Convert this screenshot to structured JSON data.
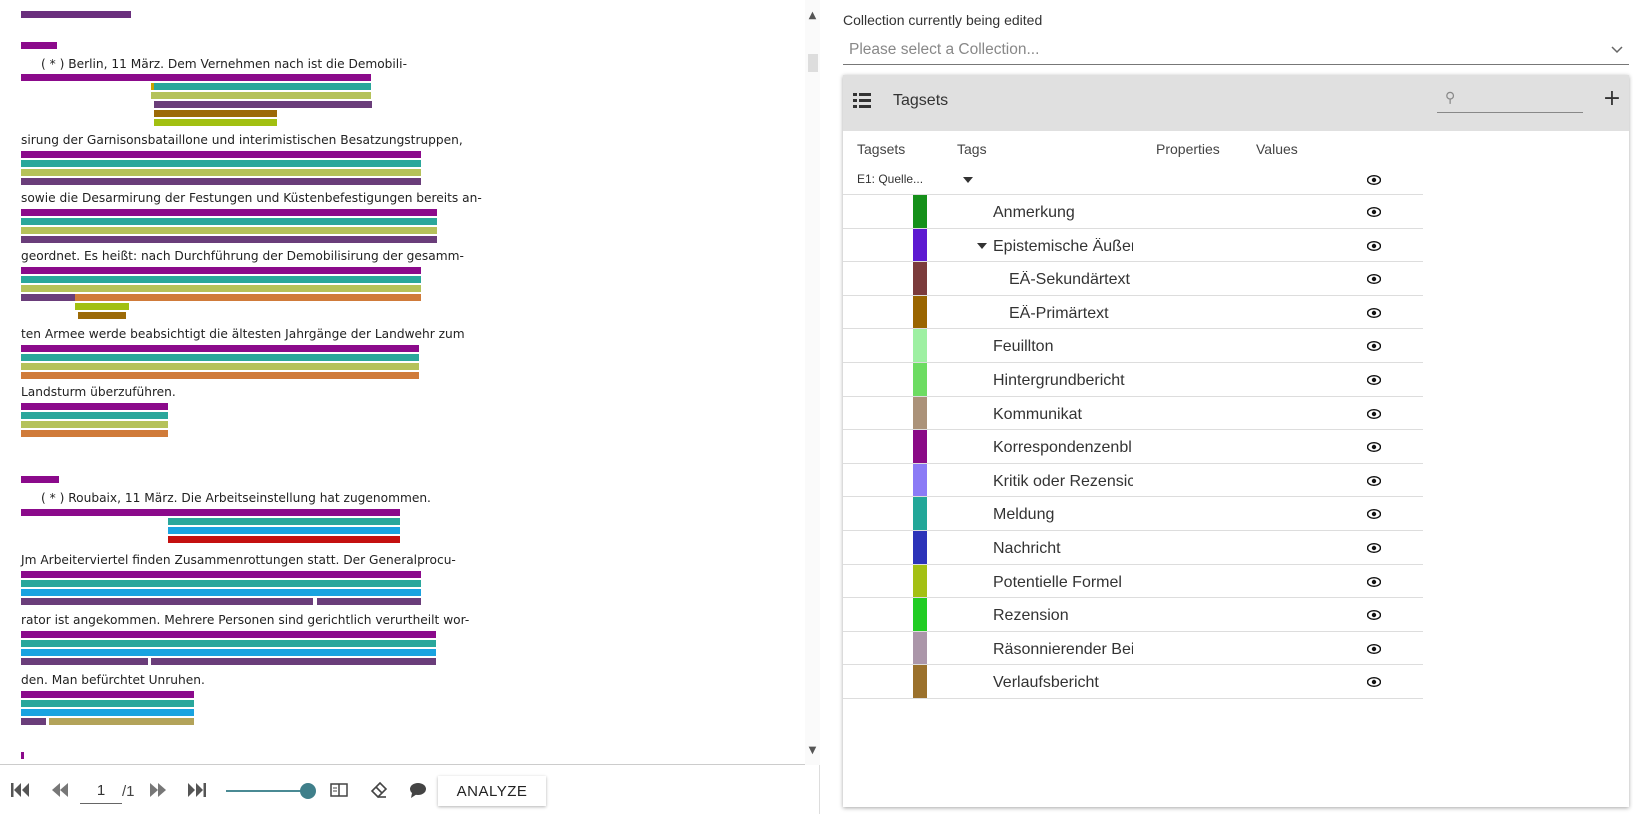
{
  "document": {
    "lines": [
      {
        "text": "",
        "top": 0,
        "indent": 0,
        "bars": [
          {
            "w": 110,
            "x": 0,
            "c": "#6a2f7d",
            "y": 11
          }
        ]
      },
      {
        "text": "",
        "top": 0,
        "indent": 0,
        "bars": [
          {
            "w": 36,
            "x": 0,
            "c": "#8b0a8b",
            "y": 42
          }
        ]
      },
      {
        "text": "( * ) Berlin, 11 März. Dem Vernehmen nach ist die Demobili-",
        "top": 56,
        "indent": 20,
        "bars": [
          {
            "x": 0,
            "w": 350,
            "c": "#8b0a8b",
            "y": 74
          },
          {
            "x": 130,
            "w": 220,
            "c": "#2aa79b",
            "y": 83
          },
          {
            "x": 130,
            "w": 220,
            "c": "#b5c25a",
            "y": 92
          },
          {
            "x": 133,
            "w": 218,
            "c": "#6a3d7a",
            "y": 101
          },
          {
            "x": 133,
            "w": 123,
            "c": "#9c6a08",
            "y": 110
          },
          {
            "x": 133,
            "w": 123,
            "c": "#a2c011",
            "y": 119
          },
          {
            "x": 130,
            "w": 3,
            "c": "#c8a400",
            "y": 83
          }
        ]
      },
      {
        "text": "sirung der Garnisonsbataillone und interimistischen Besatzungstruppen,",
        "top": 132,
        "indent": 0,
        "bars": [
          {
            "x": 0,
            "w": 400,
            "c": "#8b0a8b",
            "y": 151
          },
          {
            "x": 0,
            "w": 400,
            "c": "#2aa79b",
            "y": 160
          },
          {
            "x": 0,
            "w": 400,
            "c": "#b5c25a",
            "y": 169
          },
          {
            "x": 0,
            "w": 400,
            "c": "#6a3d7a",
            "y": 178
          }
        ]
      },
      {
        "text": "sowie die Desarmirung der Festungen und Küstenbefestigungen bereits an-",
        "top": 190,
        "indent": 0,
        "bars": [
          {
            "x": 0,
            "w": 416,
            "c": "#8b0a8b",
            "y": 209
          },
          {
            "x": 0,
            "w": 416,
            "c": "#2aa79b",
            "y": 218
          },
          {
            "x": 0,
            "w": 416,
            "c": "#b5c25a",
            "y": 227
          },
          {
            "x": 0,
            "w": 416,
            "c": "#6a3d7a",
            "y": 236
          }
        ]
      },
      {
        "text": "geordnet. Es heißt: nach Durchführung der Demobilisirung der gesamm-",
        "top": 248,
        "indent": 0,
        "bars": [
          {
            "x": 0,
            "w": 400,
            "c": "#8b0a8b",
            "y": 267
          },
          {
            "x": 0,
            "w": 400,
            "c": "#2aa79b",
            "y": 276
          },
          {
            "x": 0,
            "w": 400,
            "c": "#b5c25a",
            "y": 285
          },
          {
            "x": 0,
            "w": 54,
            "c": "#6a3d7a",
            "y": 294
          },
          {
            "x": 54,
            "w": 346,
            "c": "#d07b3a",
            "y": 294
          },
          {
            "x": 54,
            "w": 54,
            "c": "#a2c011",
            "y": 303
          },
          {
            "x": 57,
            "w": 48,
            "c": "#9c6a08",
            "y": 312
          }
        ]
      },
      {
        "text": "ten Armee werde beabsichtigt die ältesten Jahrgänge der Landwehr zum",
        "top": 326,
        "indent": 0,
        "bars": [
          {
            "x": 0,
            "w": 398,
            "c": "#8b0a8b",
            "y": 345
          },
          {
            "x": 0,
            "w": 398,
            "c": "#2aa79b",
            "y": 354
          },
          {
            "x": 0,
            "w": 398,
            "c": "#b5c25a",
            "y": 363
          },
          {
            "x": 0,
            "w": 398,
            "c": "#d07b3a",
            "y": 372
          }
        ]
      },
      {
        "text": "Landsturm überzuführen.",
        "top": 384,
        "indent": 0,
        "bars": [
          {
            "x": 0,
            "w": 147,
            "c": "#8b0a8b",
            "y": 403
          },
          {
            "x": 0,
            "w": 147,
            "c": "#2aa79b",
            "y": 412
          },
          {
            "x": 0,
            "w": 147,
            "c": "#b5c25a",
            "y": 421
          },
          {
            "x": 0,
            "w": 147,
            "c": "#d07b3a",
            "y": 430
          }
        ]
      },
      {
        "text": "",
        "top": 0,
        "indent": 0,
        "bars": [
          {
            "x": 0,
            "w": 38,
            "c": "#8b0a8b",
            "y": 476
          }
        ]
      },
      {
        "text": "( * ) Roubaix, 11 März. Die Arbeitseinstellung hat zugenommen.",
        "top": 490,
        "indent": 20,
        "bars": [
          {
            "x": 0,
            "w": 379,
            "c": "#8b0a8b",
            "y": 509
          },
          {
            "x": 147,
            "w": 232,
            "c": "#2aa79b",
            "y": 518
          },
          {
            "x": 147,
            "w": 232,
            "c": "#1aa3e0",
            "y": 527
          },
          {
            "x": 147,
            "w": 232,
            "c": "#c41010",
            "y": 536
          }
        ]
      },
      {
        "text": "Jm Arbeiterviertel finden Zusammenrottungen statt. Der Generalprocu-",
        "top": 552,
        "indent": 0,
        "bars": [
          {
            "x": 0,
            "w": 400,
            "c": "#8b0a8b",
            "y": 571
          },
          {
            "x": 0,
            "w": 400,
            "c": "#2aa79b",
            "y": 580
          },
          {
            "x": 0,
            "w": 400,
            "c": "#1aa3e0",
            "y": 589
          },
          {
            "x": 0,
            "w": 292,
            "c": "#6a3d7a",
            "y": 598
          },
          {
            "x": 296,
            "w": 104,
            "c": "#6a3d7a",
            "y": 598
          }
        ]
      },
      {
        "text": "rator ist angekommen. Mehrere Personen sind gerichtlich verurtheilt wor-",
        "top": 612,
        "indent": 0,
        "bars": [
          {
            "x": 0,
            "w": 415,
            "c": "#8b0a8b",
            "y": 631
          },
          {
            "x": 0,
            "w": 415,
            "c": "#2aa79b",
            "y": 640
          },
          {
            "x": 0,
            "w": 415,
            "c": "#1aa3e0",
            "y": 649
          },
          {
            "x": 0,
            "w": 127,
            "c": "#6a3d7a",
            "y": 658
          },
          {
            "x": 130,
            "w": 285,
            "c": "#6a3d7a",
            "y": 658
          }
        ]
      },
      {
        "text": "den. Man befürchtet Unruhen.",
        "top": 672,
        "indent": 0,
        "bars": [
          {
            "x": 0,
            "w": 173,
            "c": "#8b0a8b",
            "y": 691
          },
          {
            "x": 0,
            "w": 173,
            "c": "#2aa79b",
            "y": 700
          },
          {
            "x": 0,
            "w": 173,
            "c": "#1aa3e0",
            "y": 709
          },
          {
            "x": 0,
            "w": 25,
            "c": "#6a3d7a",
            "y": 718
          },
          {
            "x": 28,
            "w": 145,
            "c": "#b3a35a",
            "y": 718
          }
        ]
      },
      {
        "text": "",
        "top": 0,
        "indent": 0,
        "bars": [
          {
            "x": 0,
            "w": 3,
            "c": "#8b0a8b",
            "y": 752
          }
        ]
      }
    ]
  },
  "toolbar": {
    "page_value": "1",
    "page_total": "/1",
    "analyze_label": "ANALYZE"
  },
  "collection": {
    "label": "Collection currently being edited",
    "placeholder": "Please select a Collection..."
  },
  "tagsets_panel": {
    "title": "Tagsets",
    "columns": {
      "tagsets": "Tagsets",
      "tags": "Tags",
      "properties": "Properties",
      "values": "Values"
    },
    "tagset_name": "E1: Quelle...",
    "tags": [
      {
        "label": "Anmerkung",
        "color": "#15901a",
        "level": 0
      },
      {
        "label": "Epistemische Äußer",
        "color": "#5d19d1",
        "level": 0,
        "expanded": true
      },
      {
        "label": "EÄ-Sekundärtext",
        "color": "#7b3b3b",
        "level": 1
      },
      {
        "label": "EÄ-Primärtext",
        "color": "#9a6500",
        "level": 1
      },
      {
        "label": "Feuillton",
        "color": "#9ef0a2",
        "level": 0
      },
      {
        "label": "Hintergrundbericht",
        "color": "#6ddc62",
        "level": 0
      },
      {
        "label": "Kommunikat",
        "color": "#ab9279",
        "level": 0
      },
      {
        "label": "Korrespondenzenbl",
        "color": "#8a0a86",
        "level": 0
      },
      {
        "label": "Kritik oder Rezensic",
        "color": "#8b7bf6",
        "level": 0
      },
      {
        "label": "Meldung",
        "color": "#22a799",
        "level": 0
      },
      {
        "label": "Nachricht",
        "color": "#2c33b9",
        "level": 0
      },
      {
        "label": "Potentielle Formel",
        "color": "#a4c014",
        "level": 0
      },
      {
        "label": "Rezension",
        "color": "#21cc23",
        "level": 0
      },
      {
        "label": "Räsonnierender Bei",
        "color": "#ab96a9",
        "level": 0
      },
      {
        "label": "Verlaufsbericht",
        "color": "#9b712c",
        "level": 0
      }
    ]
  }
}
